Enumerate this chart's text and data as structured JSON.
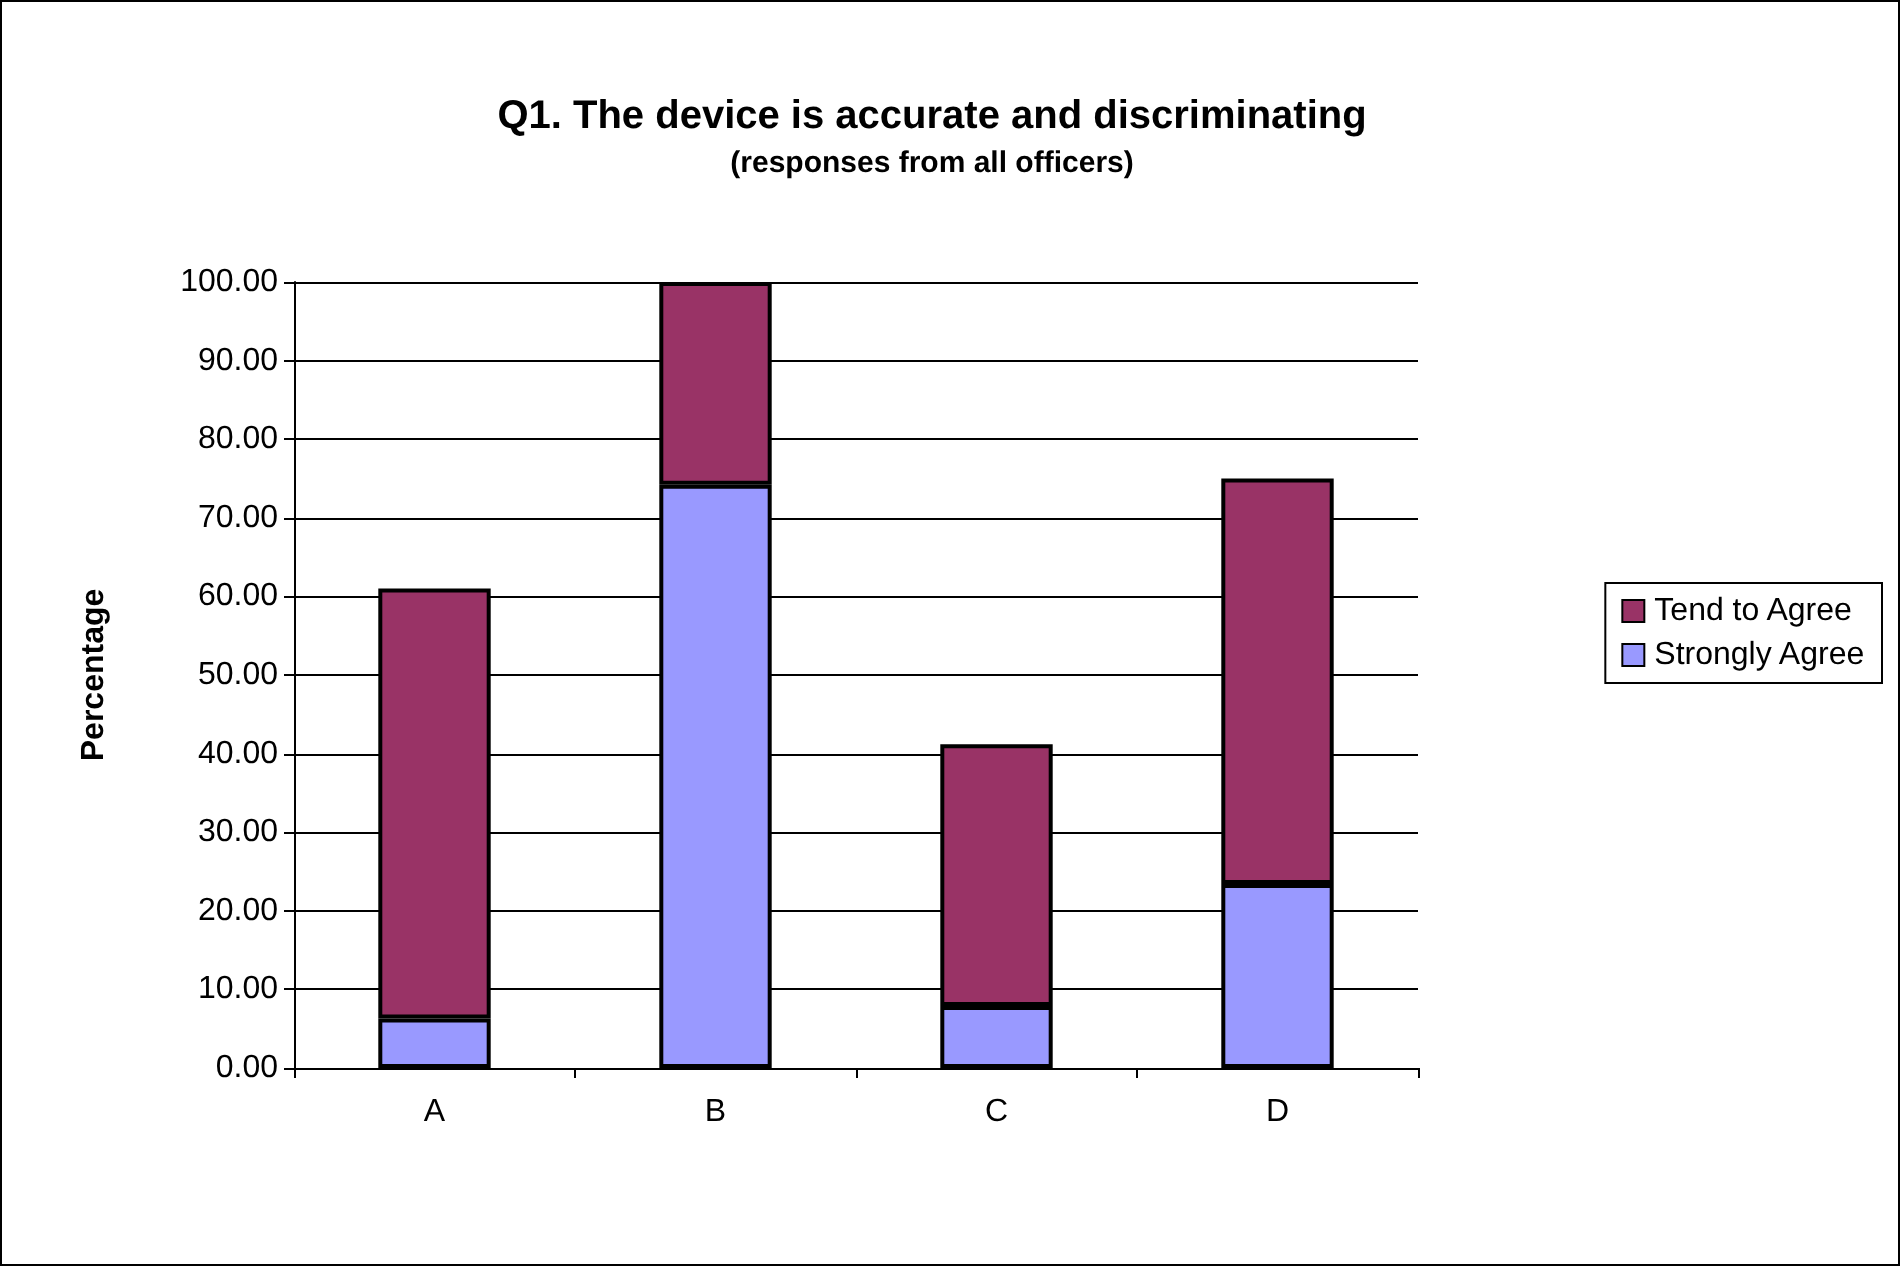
{
  "chart_data": {
    "type": "bar",
    "title": "Q1. The device is accurate and discriminating",
    "subtitle": "(responses from all officers)",
    "ylabel": "Percentage",
    "categories": [
      "A",
      "B",
      "C",
      "D"
    ],
    "stacked": true,
    "series": [
      {
        "name": "Strongly Agree",
        "color": "#9999ff",
        "values": [
          6.3,
          74.2,
          7.9,
          23.4
        ]
      },
      {
        "name": "Tend to Agree",
        "color": "#993366",
        "values": [
          54.7,
          25.8,
          33.3,
          51.6
        ]
      }
    ],
    "ylim": [
      0,
      100
    ],
    "yticks": [
      {
        "value": 0,
        "label": "0.00"
      },
      {
        "value": 10,
        "label": "10.00"
      },
      {
        "value": 20,
        "label": "20.00"
      },
      {
        "value": 30,
        "label": "30.00"
      },
      {
        "value": 40,
        "label": "40.00"
      },
      {
        "value": 50,
        "label": "50.00"
      },
      {
        "value": 60,
        "label": "60.00"
      },
      {
        "value": 70,
        "label": "70.00"
      },
      {
        "value": 80,
        "label": "80.00"
      },
      {
        "value": 90,
        "label": "90.00"
      },
      {
        "value": 100,
        "label": "100.00"
      }
    ],
    "grid": "y",
    "legend": "right"
  }
}
